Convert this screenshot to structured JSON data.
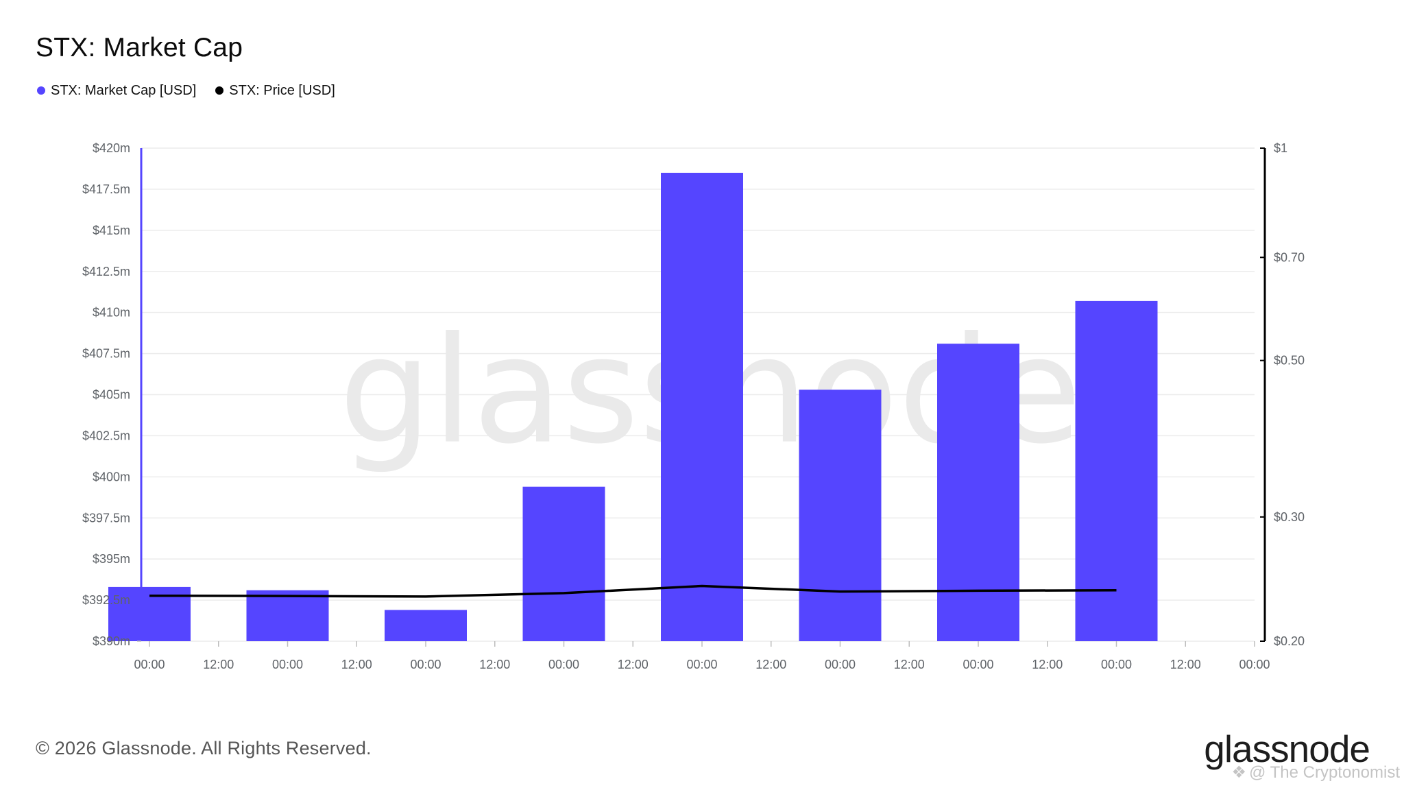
{
  "title": "STX: Market Cap",
  "legend": [
    {
      "label": "STX: Market Cap [USD]",
      "color": "#5545FF"
    },
    {
      "label": "STX: Price [USD]",
      "color": "#000000"
    }
  ],
  "watermark": "glassnode",
  "footer": {
    "copyright": "© 2026 Glassnode. All Rights Reserved.",
    "brand": "glassnode",
    "credit": "@ The Cryptonomist"
  },
  "colors": {
    "bar": "#5545FF",
    "line": "#000000",
    "left_axis": "#5545FF",
    "right_axis": "#000000",
    "grid": "#ececec",
    "tick_text": "#5f6368",
    "watermark": "#eaeaea"
  },
  "chart_data": {
    "type": "bar",
    "title": "STX: Market Cap",
    "x_tick_labels": [
      "00:00",
      "12:00",
      "00:00",
      "12:00",
      "00:00",
      "12:00",
      "00:00",
      "12:00",
      "00:00",
      "12:00",
      "00:00",
      "12:00",
      "00:00",
      "12:00",
      "00:00",
      "12:00",
      "00:00"
    ],
    "x_ticks_hours": [
      0,
      12,
      24,
      36,
      48,
      60,
      72,
      84,
      96,
      108,
      120,
      132,
      144,
      156,
      168,
      180,
      192
    ],
    "xlim_hours": [
      0,
      192
    ],
    "grid": true,
    "legend_position": "top-left",
    "y_left": {
      "ticks": [
        390,
        392.5,
        395,
        397.5,
        400,
        402.5,
        405,
        407.5,
        410,
        412.5,
        415,
        417.5,
        420
      ],
      "tick_labels": [
        "$390m",
        "$392.5m",
        "$395m",
        "$397.5m",
        "$400m",
        "$402.5m",
        "$405m",
        "$407.5m",
        "$410m",
        "$412.5m",
        "$415m",
        "$417.5m",
        "$420m"
      ],
      "ylim": [
        390,
        420
      ],
      "unit": "USD millions"
    },
    "y_right": {
      "ticks": [
        0.2,
        0.3,
        0.5,
        0.7,
        1
      ],
      "tick_labels": [
        "$0.20",
        "$0.30",
        "$0.50",
        "$0.70",
        "$1"
      ],
      "ylim": [
        0.2,
        1
      ],
      "scale": "log",
      "unit": "USD"
    },
    "series": [
      {
        "name": "STX: Market Cap [USD]",
        "type": "bar",
        "axis": "left",
        "color": "#5545FF",
        "points": [
          {
            "x_hours": 0,
            "value": 393.3
          },
          {
            "x_hours": 24,
            "value": 393.1
          },
          {
            "x_hours": 48,
            "value": 391.9
          },
          {
            "x_hours": 72,
            "value": 399.4
          },
          {
            "x_hours": 96,
            "value": 418.5
          },
          {
            "x_hours": 120,
            "value": 405.3
          },
          {
            "x_hours": 144,
            "value": 408.1
          },
          {
            "x_hours": 168,
            "value": 410.7
          }
        ]
      },
      {
        "name": "STX: Price [USD]",
        "type": "line",
        "axis": "right",
        "color": "#000000",
        "points": [
          {
            "x_hours": 0,
            "value": 0.232
          },
          {
            "x_hours": 24,
            "value": 0.2318
          },
          {
            "x_hours": 48,
            "value": 0.2314
          },
          {
            "x_hours": 72,
            "value": 0.234
          },
          {
            "x_hours": 96,
            "value": 0.2395
          },
          {
            "x_hours": 120,
            "value": 0.2352
          },
          {
            "x_hours": 144,
            "value": 0.2358
          },
          {
            "x_hours": 168,
            "value": 0.2362
          }
        ]
      }
    ]
  }
}
